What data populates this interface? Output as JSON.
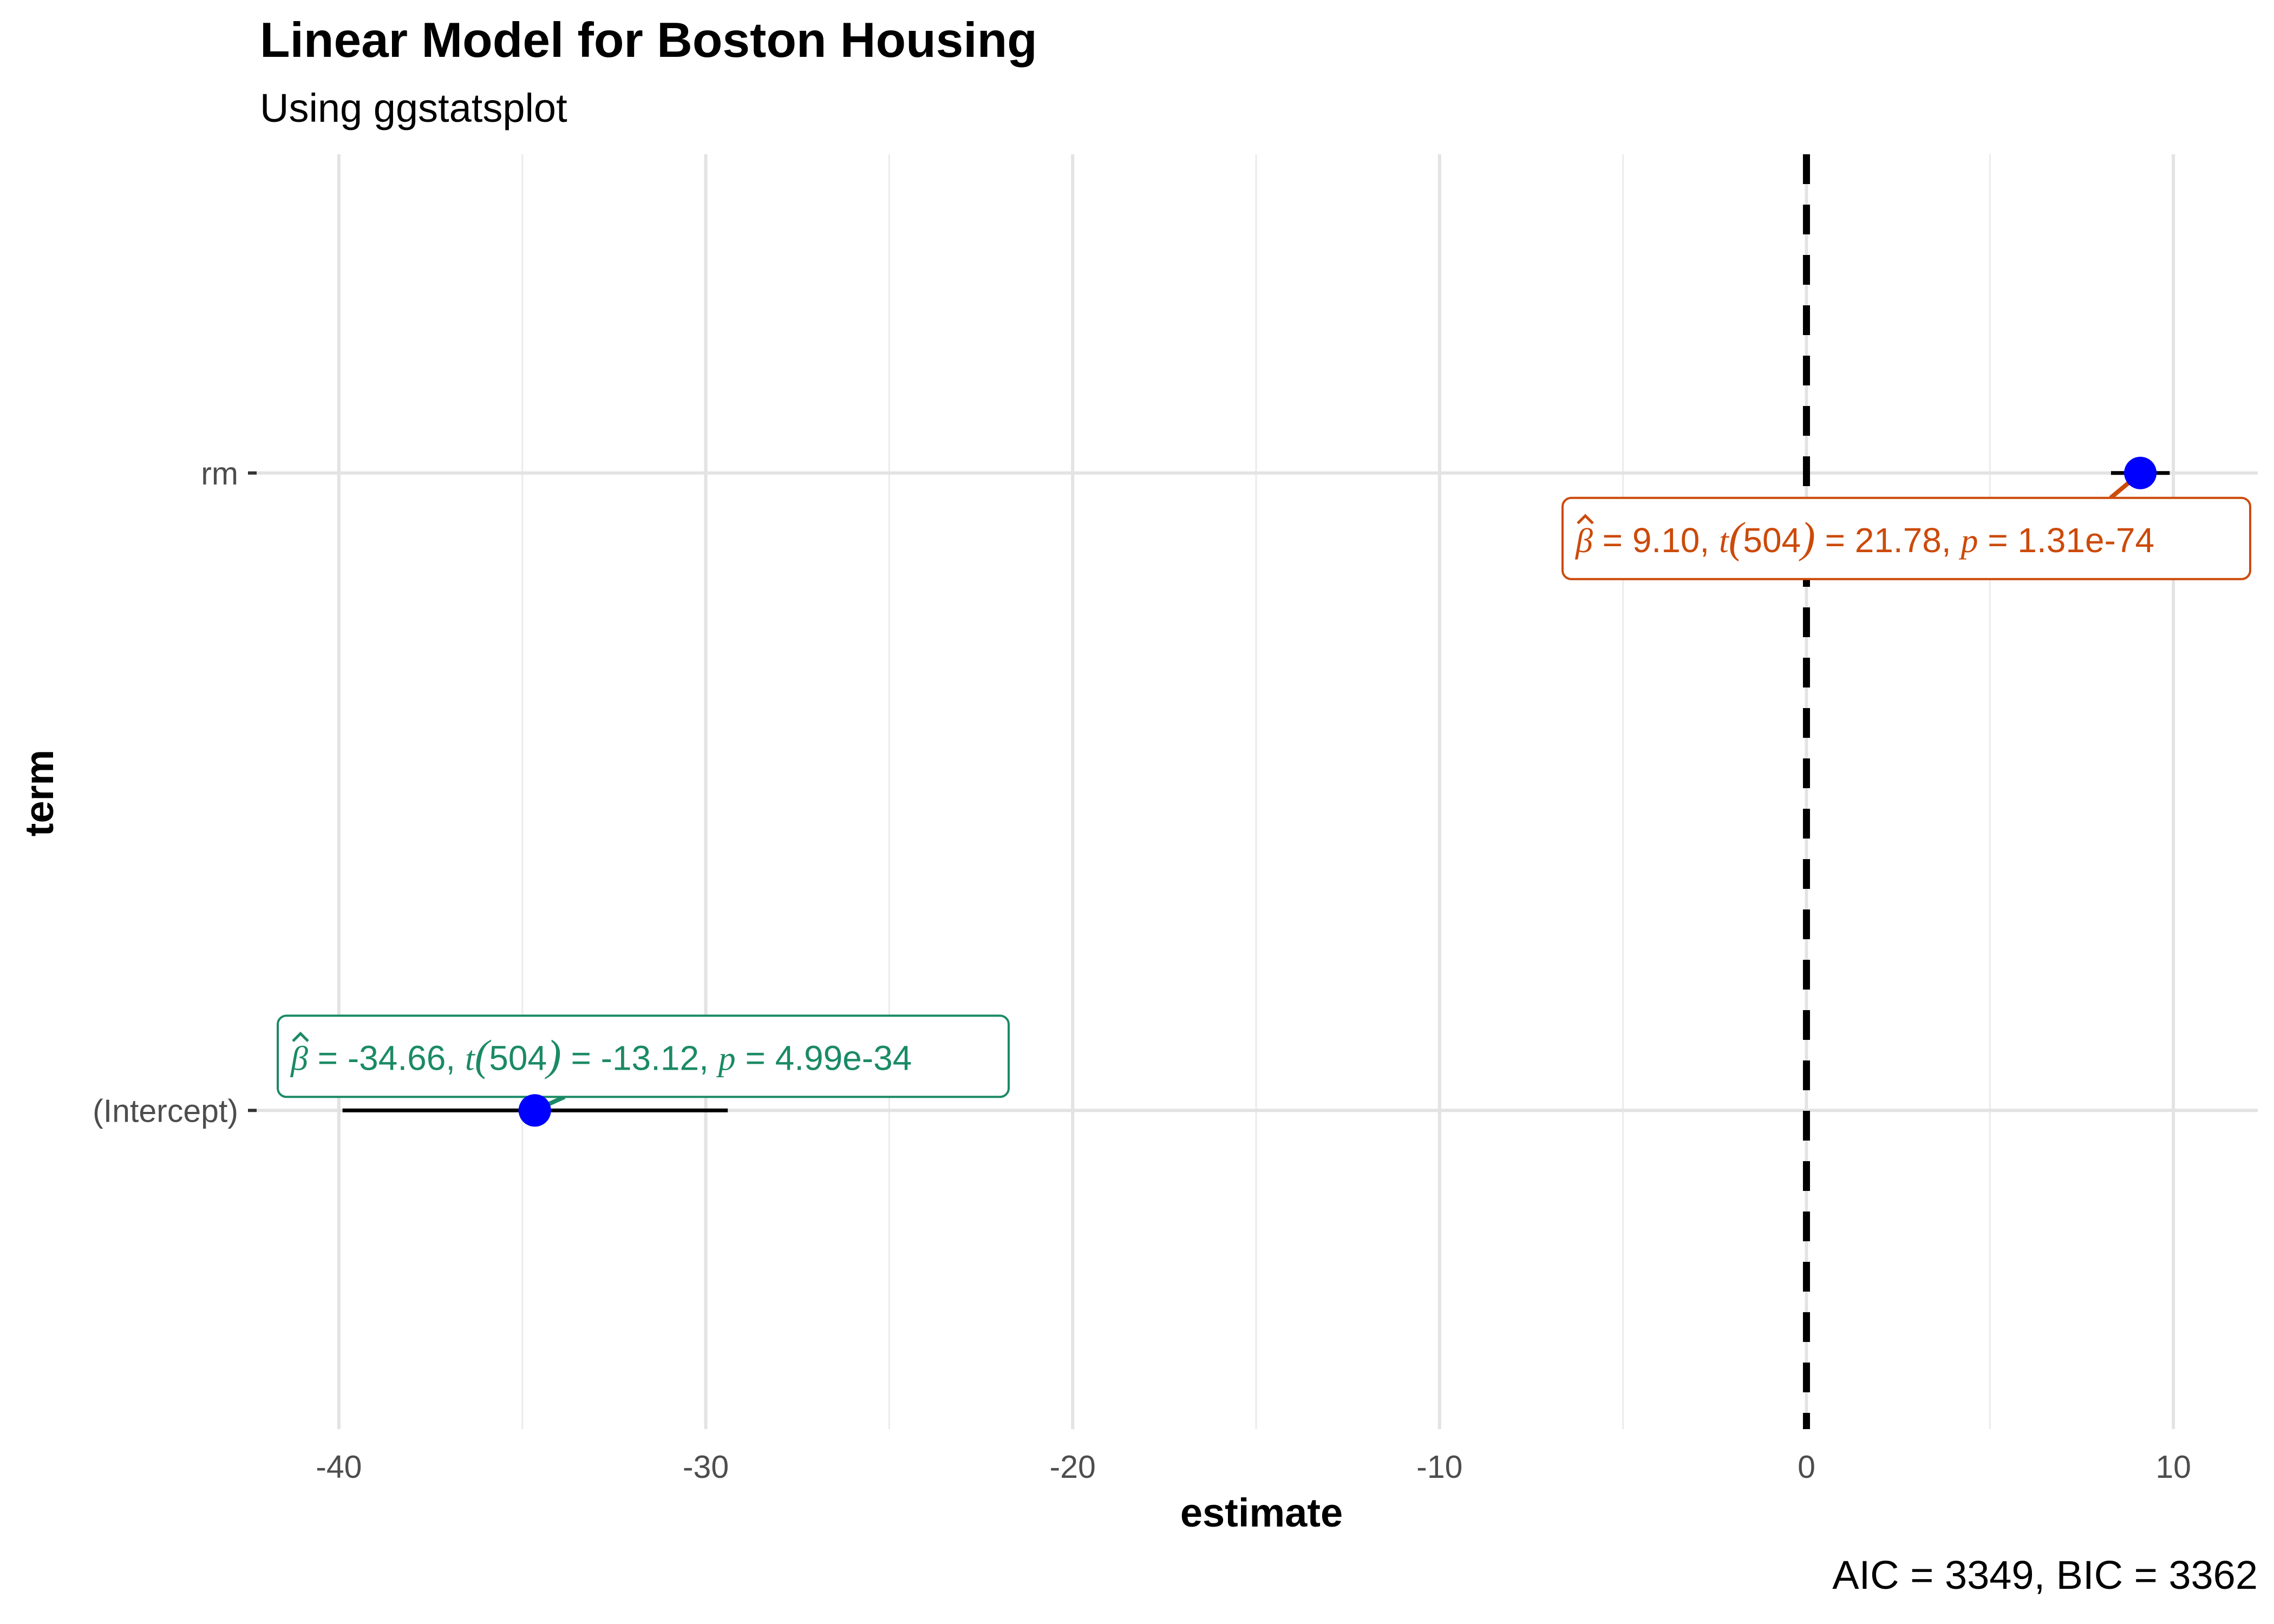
{
  "chart_data": {
    "type": "scatter",
    "title": "Linear Model for Boston Housing",
    "subtitle": "Using ggstatsplot",
    "xlabel": "estimate",
    "ylabel": "term",
    "caption": "AIC = 3349, BIC = 3362",
    "xlim": [
      -42.3,
      12.3
    ],
    "x_ticks": [
      -40,
      -30,
      -20,
      -10,
      0,
      10
    ],
    "x_tick_labels": [
      "-40",
      "-30",
      "-20",
      "-10",
      "0",
      "10"
    ],
    "grid": true,
    "reference_line": {
      "x": 0,
      "style": "dashed"
    },
    "terms": [
      {
        "term": "(Intercept)",
        "estimate": -34.66,
        "conf_low": -39.9,
        "conf_high": -29.4,
        "label": {
          "beta": "β",
          "estimate_text": " = -34.66, ",
          "t_symbol": "t",
          "df": "504",
          "statistic_text": " = -13.12, ",
          "p_symbol": "p",
          "p_text": "  = 4.99e-34"
        },
        "color": "#1b8a66"
      },
      {
        "term": "rm",
        "estimate": 9.1,
        "conf_low": 8.3,
        "conf_high": 9.9,
        "label": {
          "beta": "β",
          "estimate_text": " = 9.10, ",
          "t_symbol": "t",
          "df": "504",
          "statistic_text": " = 21.78, ",
          "p_symbol": "p",
          "p_text": "  = 1.31e-74"
        },
        "color": "#cc4a0a"
      }
    ],
    "point_color": "#0000ff"
  }
}
